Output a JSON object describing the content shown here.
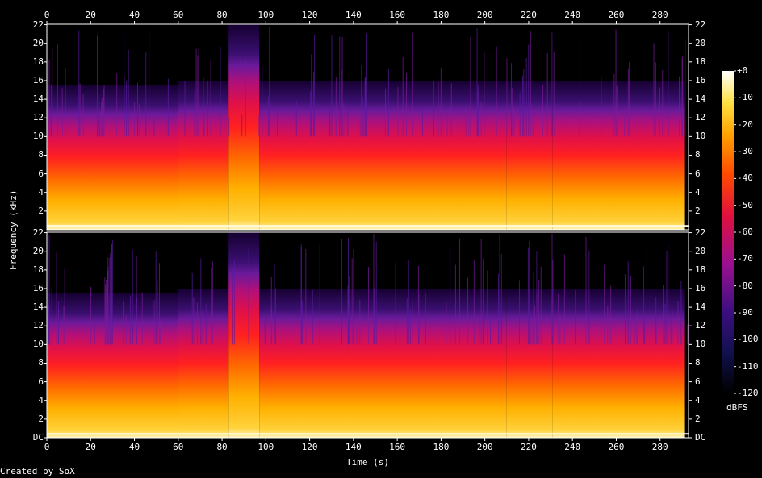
{
  "chart_data": {
    "type": "heatmap",
    "xlabel": "Time (s)",
    "ylabel": "Frequency (kHz)",
    "x_ticks": [
      0,
      20,
      40,
      60,
      80,
      100,
      120,
      140,
      160,
      180,
      200,
      220,
      240,
      260,
      280
    ],
    "xlim": [
      0,
      293
    ],
    "ylim": [
      0,
      22.05
    ],
    "channels": [
      {
        "name": "channel-1",
        "y_tick_labels": [
          "2",
          "4",
          "6",
          "8",
          "10",
          "12",
          "14",
          "16",
          "18",
          "20",
          "22"
        ],
        "y_ticks": [
          2,
          4,
          6,
          8,
          10,
          12,
          14,
          16,
          18,
          20,
          22
        ]
      },
      {
        "name": "channel-2",
        "y_tick_labels": [
          "DC",
          "2",
          "4",
          "6",
          "8",
          "10",
          "12",
          "14",
          "16",
          "18",
          "20",
          "22"
        ],
        "y_ticks": [
          0,
          2,
          4,
          6,
          8,
          10,
          12,
          14,
          16,
          18,
          20,
          22
        ]
      }
    ],
    "colorbar": {
      "unit": "dBFS",
      "range": [
        -120,
        0
      ],
      "tick_labels": [
        "+0",
        "-10",
        "-20",
        "-30",
        "-40",
        "-50",
        "-60",
        "-70",
        "-80",
        "-90",
        "-100",
        "-110",
        "-120"
      ],
      "ticks": [
        0,
        -10,
        -20,
        -30,
        -40,
        -50,
        -60,
        -70,
        -80,
        -90,
        -100,
        -110,
        -120
      ]
    },
    "cutoff_khz_by_segment": [
      {
        "t0": 0,
        "t1": 60,
        "cutoff": 15.5
      },
      {
        "t0": 60,
        "t1": 83,
        "cutoff": 16
      },
      {
        "t0": 83,
        "t1": 97,
        "cutoff": 22
      },
      {
        "t0": 97,
        "t1": 210,
        "cutoff": 16
      },
      {
        "t0": 210,
        "t1": 231,
        "cutoff": 16
      },
      {
        "t0": 231,
        "t1": 291,
        "cutoff": 16
      }
    ],
    "footer": "Created by SoX"
  }
}
